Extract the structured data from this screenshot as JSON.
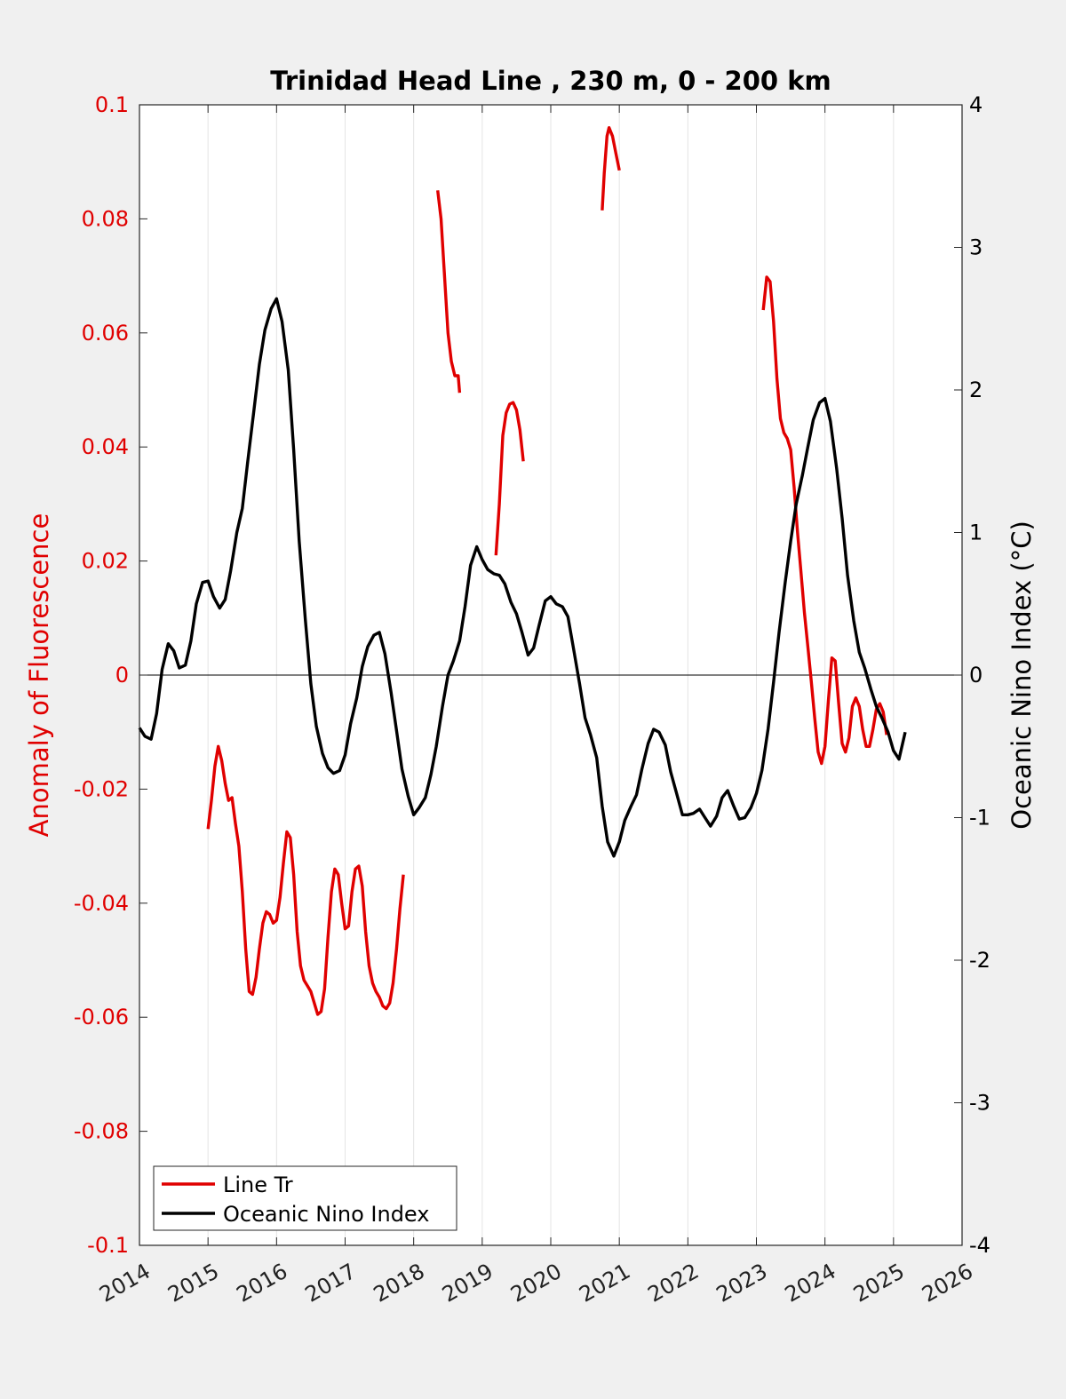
{
  "chart_data": {
    "type": "line",
    "title": "Trinidad Head Line , 230 m, 0 - 200 km",
    "ylabel_left": "Anomaly of Fluorescence",
    "ylabel_right": "Oceanic Nino Index (°C)",
    "xlim": [
      2014,
      2026
    ],
    "ylim_left": [
      -0.1,
      0.1
    ],
    "ylim_right": [
      -4,
      4
    ],
    "x_ticks": [
      "2014",
      "2015",
      "2016",
      "2017",
      "2018",
      "2019",
      "2020",
      "2021",
      "2022",
      "2023",
      "2024",
      "2025",
      "2026"
    ],
    "y_ticks_left": [
      "0.1",
      "0.08",
      "0.06",
      "0.04",
      "0.02",
      "0",
      "-0.02",
      "-0.04",
      "-0.06",
      "-0.08",
      "-0.1"
    ],
    "y_ticks_right": [
      "4",
      "3",
      "2",
      "1",
      "0",
      "-1",
      "-2",
      "-3",
      "-4"
    ],
    "grid": "vertical",
    "legend_position": "bottom-left",
    "colors": {
      "line_tr": "#e00000",
      "oni": "#000000",
      "left_axis": "#e00000"
    },
    "series": [
      {
        "name": "Line Tr",
        "axis": "left",
        "color": "#e00000",
        "segments": [
          [
            [
              2015.0,
              -0.027
            ],
            [
              2015.05,
              -0.022
            ],
            [
              2015.1,
              -0.016
            ],
            [
              2015.15,
              -0.0125
            ],
            [
              2015.2,
              -0.015
            ],
            [
              2015.25,
              -0.019
            ],
            [
              2015.3,
              -0.022
            ],
            [
              2015.35,
              -0.0215
            ],
            [
              2015.4,
              -0.026
            ],
            [
              2015.45,
              -0.03
            ],
            [
              2015.5,
              -0.038
            ],
            [
              2015.55,
              -0.048
            ],
            [
              2015.6,
              -0.0555
            ],
            [
              2015.65,
              -0.056
            ],
            [
              2015.7,
              -0.053
            ],
            [
              2015.75,
              -0.048
            ],
            [
              2015.8,
              -0.0435
            ],
            [
              2015.85,
              -0.0415
            ],
            [
              2015.9,
              -0.042
            ],
            [
              2015.95,
              -0.0435
            ],
            [
              2016.0,
              -0.043
            ],
            [
              2016.05,
              -0.039
            ],
            [
              2016.1,
              -0.033
            ],
            [
              2016.15,
              -0.0275
            ],
            [
              2016.2,
              -0.0285
            ],
            [
              2016.25,
              -0.035
            ],
            [
              2016.3,
              -0.045
            ],
            [
              2016.35,
              -0.051
            ],
            [
              2016.4,
              -0.0535
            ],
            [
              2016.45,
              -0.0545
            ],
            [
              2016.5,
              -0.0555
            ],
            [
              2016.55,
              -0.0575
            ],
            [
              2016.6,
              -0.0595
            ],
            [
              2016.65,
              -0.059
            ],
            [
              2016.7,
              -0.055
            ],
            [
              2016.75,
              -0.046
            ],
            [
              2016.8,
              -0.038
            ],
            [
              2016.85,
              -0.034
            ],
            [
              2016.9,
              -0.035
            ],
            [
              2016.95,
              -0.04
            ],
            [
              2017.0,
              -0.0445
            ],
            [
              2017.05,
              -0.044
            ],
            [
              2017.1,
              -0.038
            ],
            [
              2017.15,
              -0.034
            ],
            [
              2017.2,
              -0.0335
            ],
            [
              2017.25,
              -0.037
            ],
            [
              2017.3,
              -0.045
            ],
            [
              2017.35,
              -0.051
            ],
            [
              2017.4,
              -0.054
            ],
            [
              2017.45,
              -0.0555
            ],
            [
              2017.5,
              -0.0565
            ],
            [
              2017.55,
              -0.058
            ],
            [
              2017.6,
              -0.0585
            ],
            [
              2017.65,
              -0.0575
            ],
            [
              2017.7,
              -0.054
            ],
            [
              2017.75,
              -0.048
            ],
            [
              2017.8,
              -0.041
            ],
            [
              2017.85,
              -0.035
            ]
          ],
          [
            [
              2018.35,
              0.085
            ],
            [
              2018.4,
              0.08
            ],
            [
              2018.45,
              0.07
            ],
            [
              2018.5,
              0.06
            ],
            [
              2018.55,
              0.055
            ],
            [
              2018.6,
              0.0525
            ],
            [
              2018.65,
              0.0525
            ],
            [
              2018.67,
              0.0495
            ]
          ],
          [
            [
              2019.2,
              0.021
            ],
            [
              2019.25,
              0.03
            ],
            [
              2019.3,
              0.042
            ],
            [
              2019.35,
              0.046
            ],
            [
              2019.4,
              0.0475
            ],
            [
              2019.45,
              0.0478
            ],
            [
              2019.5,
              0.0465
            ],
            [
              2019.55,
              0.043
            ],
            [
              2019.6,
              0.0375
            ]
          ],
          [
            [
              2020.75,
              0.0815
            ],
            [
              2020.78,
              0.088
            ],
            [
              2020.82,
              0.0945
            ],
            [
              2020.85,
              0.096
            ],
            [
              2020.9,
              0.0945
            ],
            [
              2020.95,
              0.0915
            ],
            [
              2021.0,
              0.0885
            ]
          ],
          [
            [
              2023.1,
              0.064
            ],
            [
              2023.15,
              0.0698
            ],
            [
              2023.2,
              0.069
            ],
            [
              2023.25,
              0.062
            ],
            [
              2023.3,
              0.052
            ],
            [
              2023.35,
              0.045
            ],
            [
              2023.4,
              0.0425
            ],
            [
              2023.45,
              0.0415
            ],
            [
              2023.5,
              0.0395
            ],
            [
              2023.55,
              0.033
            ],
            [
              2023.6,
              0.025
            ],
            [
              2023.65,
              0.018
            ],
            [
              2023.7,
              0.011
            ],
            [
              2023.75,
              0.005
            ],
            [
              2023.8,
              -0.001
            ],
            [
              2023.85,
              -0.0075
            ],
            [
              2023.9,
              -0.0135
            ],
            [
              2023.95,
              -0.0155
            ],
            [
              2024.0,
              -0.0125
            ],
            [
              2024.05,
              -0.0045
            ],
            [
              2024.1,
              0.003
            ],
            [
              2024.15,
              0.0025
            ],
            [
              2024.2,
              -0.005
            ],
            [
              2024.25,
              -0.012
            ],
            [
              2024.3,
              -0.0135
            ],
            [
              2024.35,
              -0.011
            ],
            [
              2024.4,
              -0.0055
            ],
            [
              2024.45,
              -0.004
            ],
            [
              2024.5,
              -0.0055
            ],
            [
              2024.55,
              -0.0095
            ],
            [
              2024.6,
              -0.0125
            ],
            [
              2024.65,
              -0.0125
            ],
            [
              2024.7,
              -0.0095
            ],
            [
              2024.75,
              -0.006
            ],
            [
              2024.8,
              -0.005
            ],
            [
              2024.85,
              -0.0065
            ],
            [
              2024.9,
              -0.0105
            ]
          ]
        ]
      },
      {
        "name": "Oceanic Nino Index",
        "axis": "right",
        "color": "#000000",
        "points": [
          [
            2014.0,
            -0.37
          ],
          [
            2014.08,
            -0.43
          ],
          [
            2014.17,
            -0.45
          ],
          [
            2014.25,
            -0.27
          ],
          [
            2014.33,
            0.04
          ],
          [
            2014.42,
            0.22
          ],
          [
            2014.5,
            0.17
          ],
          [
            2014.58,
            0.05
          ],
          [
            2014.67,
            0.07
          ],
          [
            2014.75,
            0.24
          ],
          [
            2014.83,
            0.5
          ],
          [
            2014.92,
            0.65
          ],
          [
            2015.0,
            0.66
          ],
          [
            2015.08,
            0.55
          ],
          [
            2015.17,
            0.47
          ],
          [
            2015.25,
            0.53
          ],
          [
            2015.33,
            0.73
          ],
          [
            2015.42,
            1.0
          ],
          [
            2015.5,
            1.17
          ],
          [
            2015.58,
            1.5
          ],
          [
            2015.67,
            1.86
          ],
          [
            2015.75,
            2.18
          ],
          [
            2015.83,
            2.42
          ],
          [
            2015.92,
            2.57
          ],
          [
            2016.0,
            2.64
          ],
          [
            2016.08,
            2.48
          ],
          [
            2016.17,
            2.14
          ],
          [
            2016.25,
            1.58
          ],
          [
            2016.33,
            0.94
          ],
          [
            2016.42,
            0.39
          ],
          [
            2016.5,
            -0.06
          ],
          [
            2016.58,
            -0.36
          ],
          [
            2016.67,
            -0.55
          ],
          [
            2016.75,
            -0.65
          ],
          [
            2016.83,
            -0.69
          ],
          [
            2016.92,
            -0.67
          ],
          [
            2017.0,
            -0.56
          ],
          [
            2017.08,
            -0.34
          ],
          [
            2017.17,
            -0.16
          ],
          [
            2017.25,
            0.06
          ],
          [
            2017.33,
            0.2
          ],
          [
            2017.42,
            0.28
          ],
          [
            2017.5,
            0.3
          ],
          [
            2017.58,
            0.15
          ],
          [
            2017.67,
            -0.12
          ],
          [
            2017.75,
            -0.39
          ],
          [
            2017.83,
            -0.66
          ],
          [
            2017.92,
            -0.85
          ],
          [
            2018.0,
            -0.98
          ],
          [
            2018.08,
            -0.93
          ],
          [
            2018.17,
            -0.86
          ],
          [
            2018.25,
            -0.7
          ],
          [
            2018.33,
            -0.5
          ],
          [
            2018.42,
            -0.22
          ],
          [
            2018.5,
            0.0
          ],
          [
            2018.58,
            0.1
          ],
          [
            2018.67,
            0.24
          ],
          [
            2018.75,
            0.48
          ],
          [
            2018.83,
            0.77
          ],
          [
            2018.92,
            0.9
          ],
          [
            2019.0,
            0.81
          ],
          [
            2019.08,
            0.74
          ],
          [
            2019.17,
            0.71
          ],
          [
            2019.25,
            0.7
          ],
          [
            2019.33,
            0.64
          ],
          [
            2019.42,
            0.51
          ],
          [
            2019.5,
            0.43
          ],
          [
            2019.58,
            0.3
          ],
          [
            2019.67,
            0.14
          ],
          [
            2019.75,
            0.19
          ],
          [
            2019.83,
            0.35
          ],
          [
            2019.92,
            0.52
          ],
          [
            2020.0,
            0.55
          ],
          [
            2020.08,
            0.5
          ],
          [
            2020.17,
            0.48
          ],
          [
            2020.25,
            0.41
          ],
          [
            2020.33,
            0.19
          ],
          [
            2020.42,
            -0.06
          ],
          [
            2020.5,
            -0.3
          ],
          [
            2020.58,
            -0.42
          ],
          [
            2020.67,
            -0.58
          ],
          [
            2020.75,
            -0.92
          ],
          [
            2020.83,
            -1.17
          ],
          [
            2020.92,
            -1.27
          ],
          [
            2021.0,
            -1.17
          ],
          [
            2021.08,
            -1.02
          ],
          [
            2021.17,
            -0.92
          ],
          [
            2021.25,
            -0.84
          ],
          [
            2021.33,
            -0.66
          ],
          [
            2021.42,
            -0.48
          ],
          [
            2021.5,
            -0.38
          ],
          [
            2021.58,
            -0.4
          ],
          [
            2021.67,
            -0.49
          ],
          [
            2021.75,
            -0.68
          ],
          [
            2021.83,
            -0.82
          ],
          [
            2021.92,
            -0.98
          ],
          [
            2022.0,
            -0.98
          ],
          [
            2022.08,
            -0.97
          ],
          [
            2022.17,
            -0.94
          ],
          [
            2022.25,
            -1.0
          ],
          [
            2022.33,
            -1.06
          ],
          [
            2022.42,
            -0.99
          ],
          [
            2022.5,
            -0.86
          ],
          [
            2022.58,
            -0.81
          ],
          [
            2022.67,
            -0.92
          ],
          [
            2022.75,
            -1.01
          ],
          [
            2022.83,
            -1.0
          ],
          [
            2022.92,
            -0.93
          ],
          [
            2023.0,
            -0.83
          ],
          [
            2023.08,
            -0.67
          ],
          [
            2023.17,
            -0.38
          ],
          [
            2023.25,
            -0.05
          ],
          [
            2023.33,
            0.3
          ],
          [
            2023.42,
            0.65
          ],
          [
            2023.5,
            0.94
          ],
          [
            2023.58,
            1.2
          ],
          [
            2023.67,
            1.4
          ],
          [
            2023.75,
            1.6
          ],
          [
            2023.83,
            1.79
          ],
          [
            2023.92,
            1.91
          ],
          [
            2024.0,
            1.94
          ],
          [
            2024.08,
            1.78
          ],
          [
            2024.17,
            1.45
          ],
          [
            2024.25,
            1.1
          ],
          [
            2024.33,
            0.7
          ],
          [
            2024.42,
            0.38
          ],
          [
            2024.5,
            0.16
          ],
          [
            2024.58,
            0.05
          ],
          [
            2024.67,
            -0.1
          ],
          [
            2024.75,
            -0.22
          ],
          [
            2024.83,
            -0.3
          ],
          [
            2024.92,
            -0.4
          ],
          [
            2025.0,
            -0.53
          ],
          [
            2025.08,
            -0.59
          ],
          [
            2025.17,
            -0.4
          ]
        ]
      }
    ]
  }
}
